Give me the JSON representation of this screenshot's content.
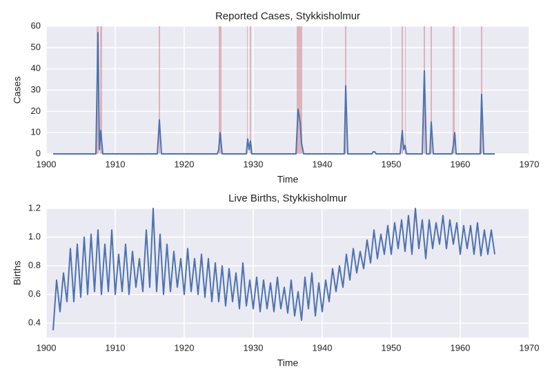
{
  "chart_data": [
    {
      "type": "line",
      "title": "Reported Cases, Stykkisholmur",
      "xlabel": "Time",
      "ylabel": "Cases",
      "x": [
        1901,
        1907.2,
        1907.5,
        1907.7,
        1907.9,
        1908.2,
        1916.1,
        1916.4,
        1916.7,
        1924.8,
        1925.0,
        1925.2,
        1925.5,
        1929.0,
        1929.2,
        1929.4,
        1929.6,
        1929.8,
        1936.2,
        1936.5,
        1936.8,
        1937.0,
        1937.3,
        1943.2,
        1943.4,
        1943.7,
        1947.2,
        1947.4,
        1947.6,
        1947.8,
        1951.3,
        1951.6,
        1951.8,
        1952.0,
        1952.2,
        1954.5,
        1954.8,
        1955.1,
        1955.6,
        1955.8,
        1956.1,
        1958.8,
        1959.0,
        1959.2,
        1959.4,
        1962.9,
        1963.1,
        1963.4,
        1965
      ],
      "values": [
        0,
        0,
        57,
        2,
        11,
        0,
        0,
        16,
        0,
        0,
        2,
        10,
        0,
        0,
        7,
        2,
        6,
        0,
        0,
        21,
        15,
        5,
        0,
        0,
        32,
        0,
        0,
        1,
        1,
        0,
        0,
        11,
        2,
        4,
        0,
        0,
        39,
        0,
        0,
        15,
        0,
        0,
        4,
        10,
        0,
        0,
        28,
        0,
        0
      ],
      "color": "#4c72b0",
      "highlight_spans": [
        [
          1907.3,
          1907.6
        ],
        [
          1907.8,
          1908.1
        ],
        [
          1916.3,
          1916.5
        ],
        [
          1925.0,
          1925.4
        ],
        [
          1929.1,
          1929.2
        ],
        [
          1929.5,
          1929.7
        ],
        [
          1936.3,
          1937.1
        ],
        [
          1943.3,
          1943.5
        ],
        [
          1951.5,
          1951.7
        ],
        [
          1952.0,
          1952.1
        ],
        [
          1954.7,
          1954.9
        ],
        [
          1955.7,
          1955.9
        ],
        [
          1958.9,
          1959.2
        ],
        [
          1963.0,
          1963.2
        ]
      ],
      "highlight_color": "#c44e52",
      "xlim": [
        1900,
        1970
      ],
      "xticks": [
        1900,
        1910,
        1920,
        1930,
        1940,
        1950,
        1960,
        1970
      ],
      "ylim": [
        0,
        60
      ],
      "yticks": [
        0,
        10,
        20,
        30,
        40,
        50,
        60
      ],
      "grid": true
    },
    {
      "type": "line",
      "title": "Live Births, Stykkisholmur",
      "xlabel": "Time",
      "ylabel": "Births",
      "x": [
        1901,
        1901.5,
        1902,
        1902.5,
        1903,
        1903.5,
        1904,
        1904.5,
        1905,
        1905.5,
        1906,
        1906.5,
        1907,
        1907.5,
        1908,
        1908.5,
        1909,
        1909.5,
        1910,
        1910.5,
        1911,
        1911.5,
        1912,
        1912.5,
        1913,
        1913.5,
        1914,
        1914.5,
        1915,
        1915.5,
        1916,
        1916.5,
        1917,
        1917.5,
        1918,
        1918.5,
        1919,
        1919.5,
        1920,
        1920.5,
        1921,
        1921.5,
        1922,
        1922.5,
        1923,
        1923.5,
        1924,
        1924.5,
        1925,
        1925.5,
        1926,
        1926.5,
        1927,
        1927.5,
        1928,
        1928.5,
        1929,
        1929.5,
        1930,
        1930.5,
        1931,
        1931.5,
        1932,
        1932.5,
        1933,
        1933.5,
        1934,
        1934.5,
        1935,
        1935.5,
        1936,
        1936.5,
        1937,
        1937.5,
        1938,
        1938.5,
        1939,
        1939.5,
        1940,
        1940.5,
        1941,
        1941.5,
        1942,
        1942.5,
        1943,
        1943.5,
        1944,
        1944.5,
        1945,
        1945.5,
        1946,
        1946.5,
        1947,
        1947.5,
        1948,
        1948.5,
        1949,
        1949.5,
        1950,
        1950.5,
        1951,
        1951.5,
        1952,
        1952.5,
        1953,
        1953.5,
        1954,
        1954.5,
        1955,
        1955.5,
        1956,
        1956.5,
        1957,
        1957.5,
        1958,
        1958.5,
        1959,
        1959.5,
        1960,
        1960.5,
        1961,
        1961.5,
        1962,
        1962.5,
        1963,
        1963.5,
        1964,
        1964.5,
        1965
      ],
      "values": [
        0.35,
        0.7,
        0.48,
        0.75,
        0.55,
        0.92,
        0.55,
        0.95,
        0.58,
        1.0,
        0.6,
        1.02,
        0.62,
        1.05,
        0.6,
        0.95,
        0.62,
        1.05,
        0.6,
        0.88,
        0.62,
        0.95,
        0.6,
        0.9,
        0.65,
        0.85,
        0.62,
        1.05,
        0.65,
        1.2,
        0.62,
        1.02,
        0.6,
        0.95,
        0.62,
        0.9,
        0.65,
        0.85,
        0.6,
        0.92,
        0.62,
        0.85,
        0.6,
        0.88,
        0.58,
        0.85,
        0.55,
        0.82,
        0.55,
        0.8,
        0.52,
        0.78,
        0.55,
        0.75,
        0.5,
        0.82,
        0.52,
        0.7,
        0.5,
        0.72,
        0.48,
        0.7,
        0.5,
        0.68,
        0.48,
        0.72,
        0.5,
        0.65,
        0.47,
        0.7,
        0.45,
        0.62,
        0.42,
        0.72,
        0.5,
        0.75,
        0.45,
        0.68,
        0.48,
        0.7,
        0.55,
        0.78,
        0.62,
        0.8,
        0.65,
        0.88,
        0.7,
        0.92,
        0.75,
        0.9,
        0.78,
        0.98,
        0.82,
        1.05,
        0.85,
        1.02,
        0.88,
        1.08,
        0.88,
        1.1,
        0.92,
        1.12,
        0.9,
        1.15,
        0.88,
        1.2,
        0.92,
        1.12,
        0.85,
        1.12,
        0.92,
        1.1,
        0.95,
        1.15,
        0.92,
        1.12,
        0.95,
        1.1,
        0.88,
        1.08,
        0.92,
        1.08,
        0.88,
        1.1,
        0.87,
        1.05,
        0.88,
        1.05,
        0.88
      ],
      "color": "#4c72b0",
      "xlim": [
        1900,
        1970
      ],
      "xticks": [
        1900,
        1910,
        1920,
        1930,
        1940,
        1950,
        1960,
        1970
      ],
      "ylim": [
        0.3,
        1.2
      ],
      "yticks": [
        0.4,
        0.6,
        0.8,
        {
          "value": 1,
          "label": "1.0"
        },
        1.2
      ],
      "grid": true
    }
  ]
}
